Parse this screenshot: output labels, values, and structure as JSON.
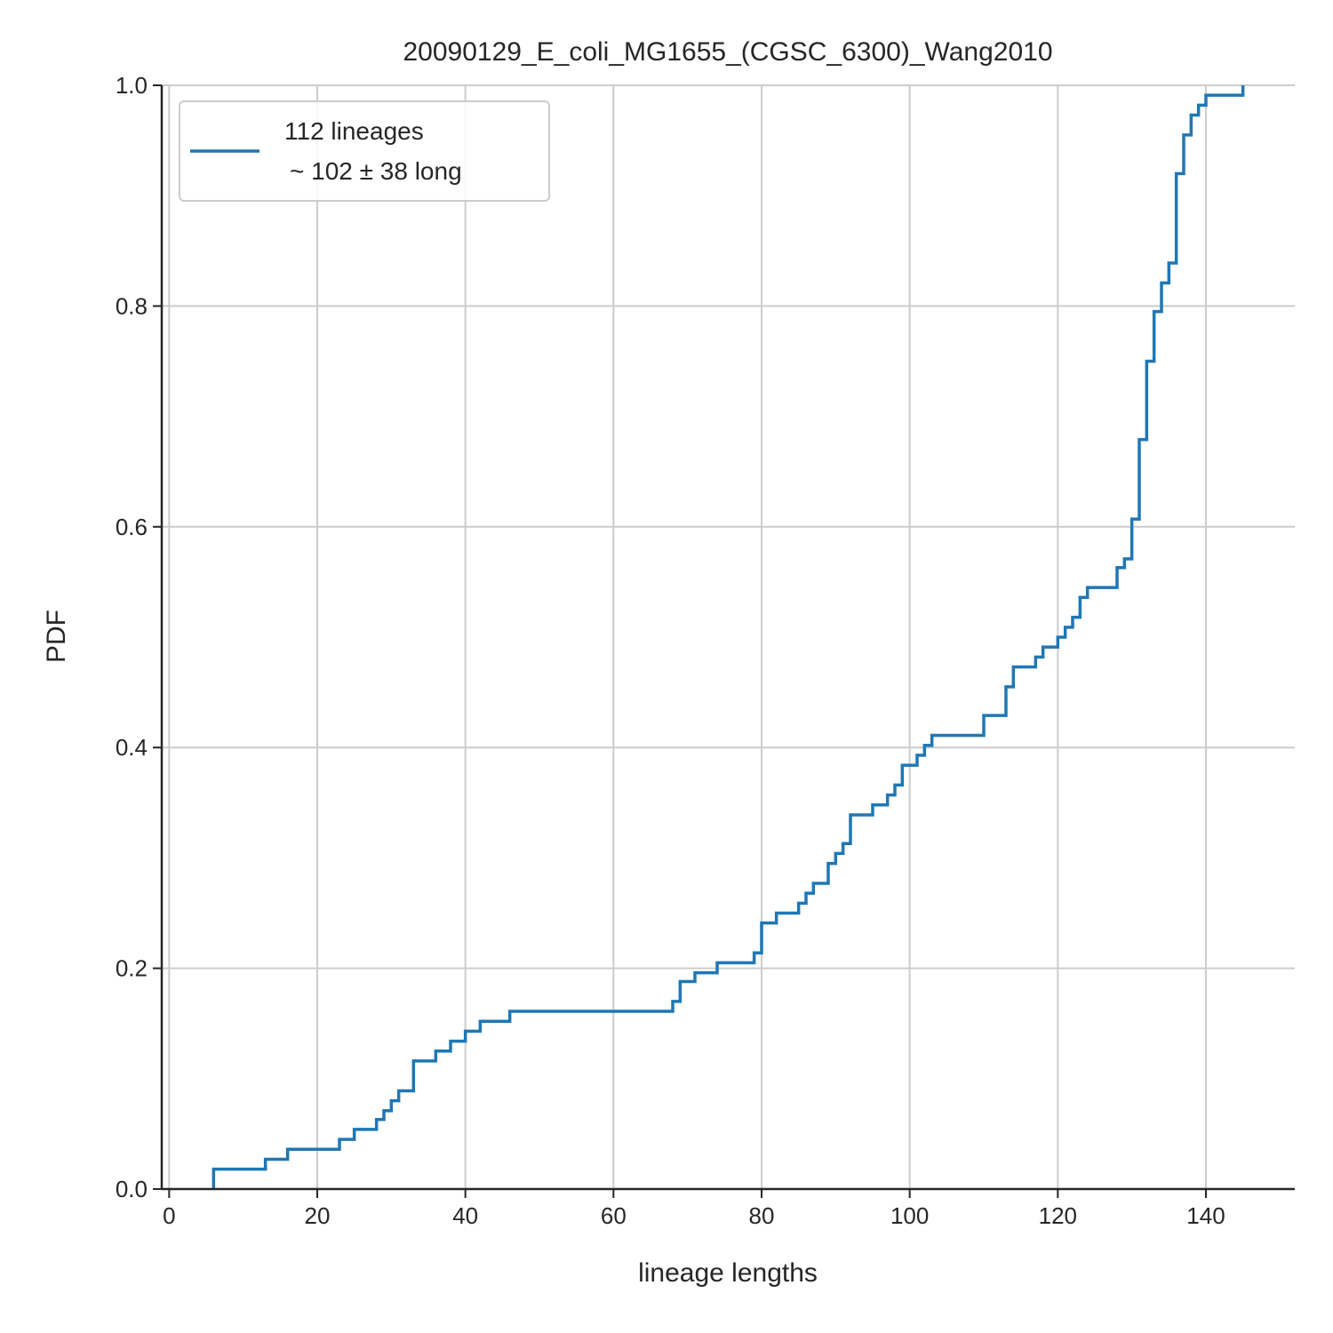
{
  "chart_data": {
    "type": "line",
    "step": "post",
    "title": "20090129_E_coli_MG1655_(CGSC_6300)_Wang2010",
    "xlabel": "lineage lengths",
    "ylabel": "PDF",
    "xlim": [
      -1,
      152
    ],
    "ylim": [
      0,
      1.0
    ],
    "xticks": [
      0,
      20,
      40,
      60,
      80,
      100,
      120,
      140
    ],
    "yticks": [
      0.0,
      0.2,
      0.4,
      0.6,
      0.8,
      1.0
    ],
    "xtick_labels": [
      "0",
      "20",
      "40",
      "60",
      "80",
      "100",
      "120",
      "140"
    ],
    "ytick_labels": [
      "0.0",
      "0.2",
      "0.4",
      "0.6",
      "0.8",
      "1.0"
    ],
    "grid": true,
    "legend_position": "top-left",
    "color": "#1f77b4",
    "series": [
      {
        "name": "112 lineages",
        "legend_line2": "~ 102 ± 38 long",
        "x": [
          6,
          13,
          16,
          23,
          25,
          28,
          29,
          30,
          31,
          33,
          36,
          38,
          40,
          42,
          46,
          68,
          69,
          71,
          74,
          79,
          80,
          82,
          85,
          86,
          87,
          89,
          90,
          91,
          92,
          95,
          97,
          98,
          99,
          101,
          102,
          103,
          110,
          113,
          114,
          117,
          118,
          120,
          121,
          122,
          123,
          124,
          128,
          129,
          130,
          131,
          132,
          133,
          134,
          135,
          136,
          137,
          138,
          139,
          140,
          145
        ],
        "y": [
          0.018,
          0.027,
          0.036,
          0.045,
          0.054,
          0.063,
          0.071,
          0.08,
          0.089,
          0.116,
          0.125,
          0.134,
          0.143,
          0.152,
          0.161,
          0.17,
          0.188,
          0.196,
          0.205,
          0.214,
          0.241,
          0.25,
          0.259,
          0.268,
          0.277,
          0.295,
          0.304,
          0.313,
          0.339,
          0.348,
          0.357,
          0.366,
          0.384,
          0.393,
          0.402,
          0.411,
          0.429,
          0.455,
          0.473,
          0.482,
          0.491,
          0.5,
          0.509,
          0.518,
          0.536,
          0.545,
          0.563,
          0.571,
          0.607,
          0.679,
          0.75,
          0.795,
          0.821,
          0.839,
          0.92,
          0.955,
          0.973,
          0.982,
          0.991,
          1.0
        ]
      }
    ]
  }
}
